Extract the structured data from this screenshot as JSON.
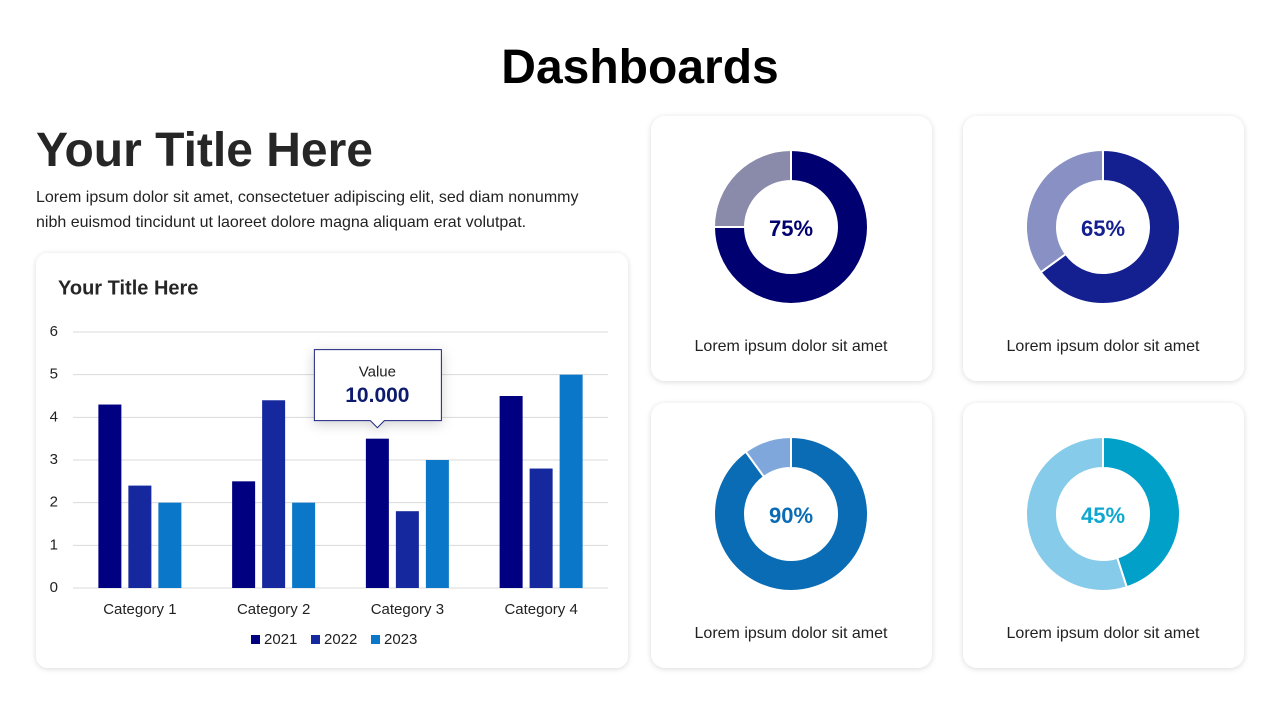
{
  "title": "Dashboards",
  "heading": "Your Title Here",
  "body": "Lorem ipsum dolor sit amet, consectetuer adipiscing elit, sed diam nonummy nibh euismod tincidunt ut laoreet dolore magna aliquam erat volutpat.",
  "chart_data": [
    {
      "type": "bar",
      "title": "Your Title Here",
      "categories": [
        "Category 1",
        "Category 2",
        "Category 3",
        "Category 4"
      ],
      "series": [
        {
          "name": "2021",
          "color": "#000080",
          "values": [
            4.3,
            2.5,
            3.5,
            4.5
          ]
        },
        {
          "name": "2022",
          "color": "#15289e",
          "values": [
            2.4,
            4.4,
            1.8,
            2.8
          ]
        },
        {
          "name": "2023",
          "color": "#0a77c8",
          "values": [
            2.0,
            2.0,
            3.0,
            5.0
          ]
        }
      ],
      "ylim": [
        0,
        6
      ],
      "yticks": [
        0,
        1,
        2,
        3,
        4,
        5,
        6
      ],
      "grid": true,
      "legend": "bottom",
      "annotation": {
        "title": "Value",
        "text": "10.000"
      }
    },
    {
      "type": "donut",
      "values": [
        75,
        25
      ],
      "colors": [
        "#000070",
        "#8a8aaa"
      ],
      "label": "75%",
      "label_color": "#000070",
      "caption": "Lorem ipsum dolor sit amet"
    },
    {
      "type": "donut",
      "values": [
        65,
        35
      ],
      "colors": [
        "#142090",
        "#8890c4"
      ],
      "label": "65%",
      "label_color": "#142090",
      "caption": "Lorem ipsum dolor sit amet"
    },
    {
      "type": "donut",
      "values": [
        90,
        10
      ],
      "colors": [
        "#0a6cb4",
        "#7fa7dc"
      ],
      "label": "90%",
      "label_color": "#0a6cb4",
      "caption": "Lorem ipsum dolor sit amet"
    },
    {
      "type": "donut",
      "values": [
        45,
        55
      ],
      "colors": [
        "#00a0c8",
        "#87cbea"
      ],
      "label": "45%",
      "label_color": "#0fa7cf",
      "caption": "Lorem ipsum dolor sit amet"
    }
  ]
}
